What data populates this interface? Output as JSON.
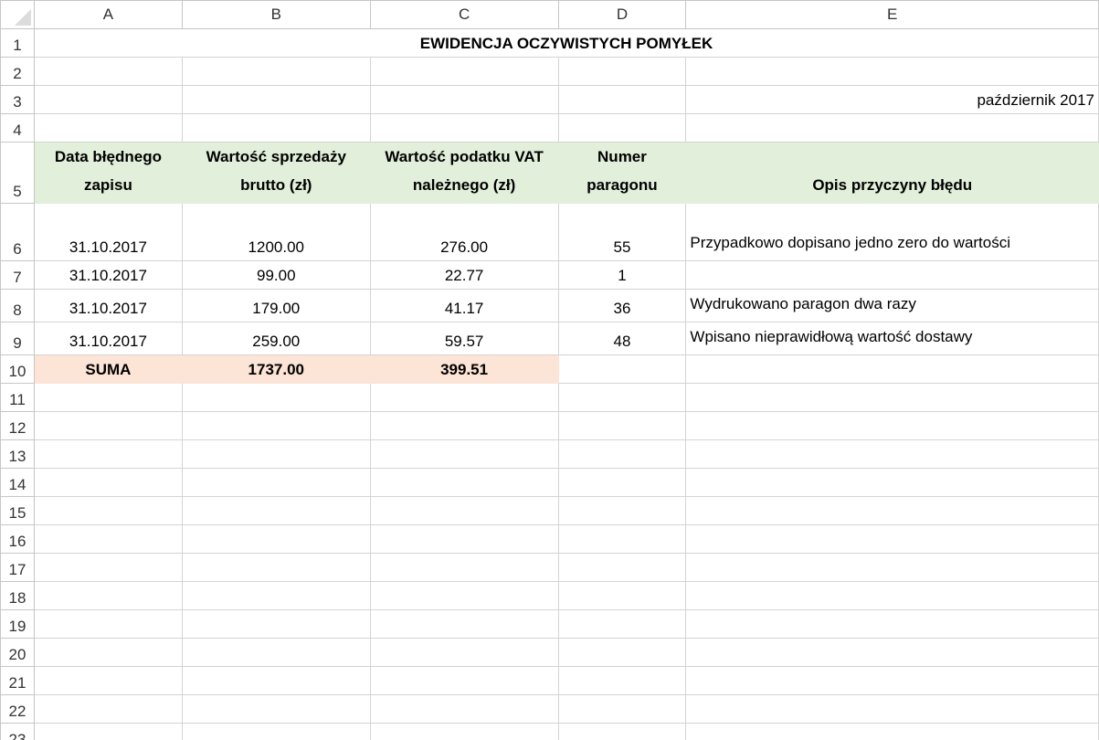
{
  "columns": [
    "A",
    "B",
    "C",
    "D",
    "E"
  ],
  "title": "EWIDENCJA OCZYWISTYCH POMYŁEK",
  "period": "październik 2017",
  "headers": [
    "Data błędnego zapisu",
    "Wartość sprzedaży brutto (zł)",
    "Wartość podatku VAT należnego (zł)",
    "Numer paragonu",
    "Opis przyczyny błędu"
  ],
  "rows": [
    [
      "31.10.2017",
      "1200.00",
      "276.00",
      "55",
      "Przypadkowo dopisano jedno zero do wartości"
    ],
    [
      "31.10.2017",
      "99.00",
      "22.77",
      "1",
      ""
    ],
    [
      "31.10.2017",
      "179.00",
      "41.17",
      "36",
      "Wydrukowano paragon dwa razy"
    ],
    [
      "31.10.2017",
      "259.00",
      "59.57",
      "48",
      "Wpisano nieprawidłową wartość dostawy"
    ]
  ],
  "total": [
    "SUMA",
    "1737.00",
    "399.51"
  ],
  "row_numbers": [
    "1",
    "2",
    "3",
    "4",
    "5",
    "6",
    "7",
    "8",
    "9",
    "10",
    "11",
    "12",
    "13",
    "14",
    "15",
    "16",
    "17",
    "18",
    "19",
    "20",
    "21",
    "22",
    "23"
  ],
  "colors": {
    "header_fill": "#e2efda",
    "total_fill": "#fce4d6",
    "gridline": "#d4d4d4"
  }
}
